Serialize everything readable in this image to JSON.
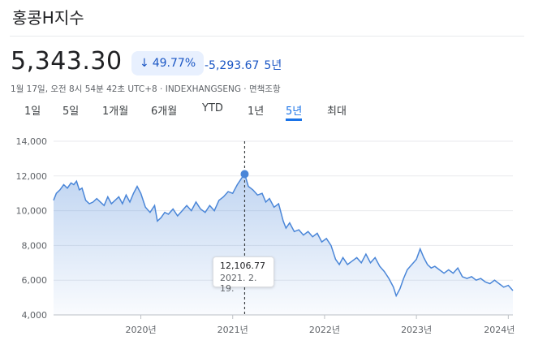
{
  "header": {
    "title": "홍콩H지수",
    "price": "5,343.30",
    "change_pct": "49.77%",
    "change_abs": "-5,293.67",
    "change_period": "5년",
    "meta": "1월 17일, 오전 8시 54분 42초 UTC+8 · INDEXHANGSENG · 면책조항"
  },
  "tabs": [
    {
      "label": "1일",
      "active": false
    },
    {
      "label": "5일",
      "active": false
    },
    {
      "label": "1개월",
      "active": false
    },
    {
      "label": "6개월",
      "active": false
    },
    {
      "label": "YTD",
      "active": false
    },
    {
      "label": "1년",
      "active": false
    },
    {
      "label": "5년",
      "active": true
    },
    {
      "label": "최대",
      "active": false
    }
  ],
  "tooltip": {
    "value": "12,106.77",
    "date": "2021. 2. 19."
  },
  "colors": {
    "line": "#4a86d8",
    "accent": "#1a73e8",
    "down": "#1a56c4"
  },
  "chart_data": {
    "type": "area",
    "ylim": [
      4000,
      14000
    ],
    "xlim": [
      2019.05,
      2024.05
    ],
    "y_ticks": [
      4000,
      6000,
      8000,
      10000,
      12000,
      14000
    ],
    "y_tick_labels": [
      "4,000",
      "6,000",
      "8,000",
      "10,000",
      "12,000",
      "14,000"
    ],
    "x_ticks": [
      2020,
      2021,
      2022,
      2023,
      2024
    ],
    "x_tick_labels": [
      "2020년",
      "2021년",
      "2022년",
      "2023년",
      "2024년"
    ],
    "grid": true,
    "highlight": {
      "x": 2021.13,
      "y": 12106.77
    },
    "series": [
      {
        "x": [
          2019.05,
          2019.08,
          2019.12,
          2019.16,
          2019.2,
          2019.24,
          2019.27,
          2019.3,
          2019.33,
          2019.36,
          2019.4,
          2019.44,
          2019.48,
          2019.52,
          2019.56,
          2019.6,
          2019.64,
          2019.68,
          2019.72,
          2019.76,
          2019.8,
          2019.84,
          2019.88,
          2019.92,
          2019.96,
          2020.0,
          2020.05,
          2020.1,
          2020.15,
          2020.18,
          2020.22,
          2020.26,
          2020.3,
          2020.35,
          2020.4,
          2020.45,
          2020.5,
          2020.55,
          2020.6,
          2020.65,
          2020.7,
          2020.75,
          2020.8,
          2020.85,
          2020.9,
          2020.95,
          2021.0,
          2021.05,
          2021.1,
          2021.13,
          2021.17,
          2021.22,
          2021.27,
          2021.32,
          2021.36,
          2021.4,
          2021.45,
          2021.5,
          2021.55,
          2021.58,
          2021.62,
          2021.67,
          2021.72,
          2021.77,
          2021.82,
          2021.87,
          2021.92,
          2021.97,
          2022.02,
          2022.07,
          2022.12,
          2022.16,
          2022.2,
          2022.25,
          2022.3,
          2022.35,
          2022.4,
          2022.45,
          2022.5,
          2022.55,
          2022.6,
          2022.65,
          2022.7,
          2022.75,
          2022.78,
          2022.82,
          2022.86,
          2022.9,
          2022.95,
          2023.0,
          2023.04,
          2023.08,
          2023.12,
          2023.16,
          2023.2,
          2023.25,
          2023.3,
          2023.35,
          2023.4,
          2023.45,
          2023.5,
          2023.55,
          2023.6,
          2023.65,
          2023.7,
          2023.75,
          2023.8,
          2023.85,
          2023.9,
          2023.95,
          2024.0,
          2024.05
        ],
        "y": [
          10600,
          11000,
          11200,
          11500,
          11300,
          11600,
          11500,
          11700,
          11200,
          11300,
          10600,
          10400,
          10500,
          10700,
          10500,
          10300,
          10800,
          10400,
          10600,
          10800,
          10400,
          10900,
          10500,
          11000,
          11400,
          11000,
          10200,
          9900,
          10300,
          9400,
          9600,
          9900,
          9800,
          10100,
          9700,
          10000,
          10300,
          10000,
          10500,
          10100,
          9900,
          10300,
          10000,
          10600,
          10800,
          11100,
          11000,
          11500,
          11900,
          12106.77,
          11400,
          11200,
          10900,
          11000,
          10500,
          10700,
          10200,
          10400,
          9400,
          9000,
          9300,
          8800,
          8900,
          8600,
          8800,
          8500,
          8700,
          8200,
          8400,
          8000,
          7200,
          6900,
          7300,
          6900,
          7100,
          7300,
          7000,
          7500,
          7000,
          7300,
          6800,
          6500,
          6100,
          5600,
          5100,
          5500,
          6100,
          6600,
          6900,
          7200,
          7800,
          7300,
          6900,
          6700,
          6800,
          6600,
          6400,
          6600,
          6400,
          6700,
          6200,
          6100,
          6200,
          6000,
          6100,
          5900,
          5800,
          6000,
          5800,
          5600,
          5700,
          5400
        ]
      }
    ]
  }
}
